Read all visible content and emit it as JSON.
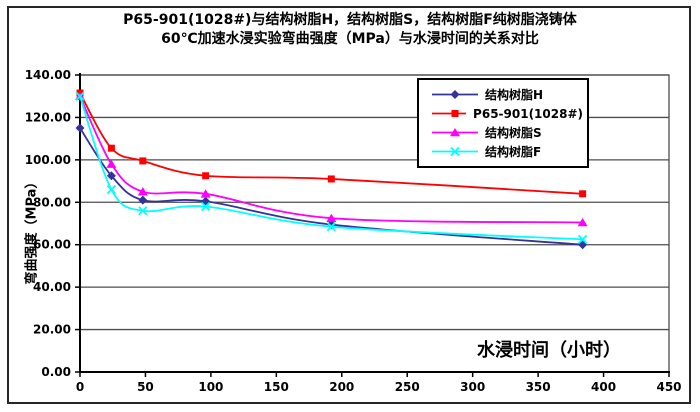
{
  "chart_data": {
    "type": "line",
    "title_line1": "P65-901(1028#)与结构树脂H，结构树脂S，结构树脂F纯树脂浇铸体",
    "title_line2": "60℃加速水浸实验弯曲强度（MPa）与水浸时间的关系对比",
    "xlabel": "水浸时间（小时）",
    "ylabel": "弯曲强度（MPa）",
    "x": [
      0,
      24,
      48,
      96,
      192,
      384
    ],
    "series": [
      {
        "name": "结构树脂H",
        "color": "#333399",
        "marker": "diamond",
        "values": [
          115,
          92.5,
          81,
          80.5,
          69.5,
          60
        ]
      },
      {
        "name": "P65-901(1028#)",
        "color": "#FF0000",
        "marker": "square",
        "values": [
          131.5,
          105.5,
          99.5,
          92.5,
          91,
          84
        ]
      },
      {
        "name": "结构树脂S",
        "color": "#FF00FF",
        "marker": "triangle",
        "values": [
          130,
          98,
          85,
          84,
          72.5,
          70.5
        ]
      },
      {
        "name": "结构树脂F",
        "color": "#00FFFF",
        "marker": "x",
        "values": [
          130,
          86,
          76,
          78,
          68.5,
          62.5
        ]
      }
    ],
    "xlim": [
      0,
      450
    ],
    "ylim": [
      0,
      140
    ],
    "xticks": [
      0,
      50,
      100,
      150,
      200,
      250,
      300,
      350,
      400,
      450
    ],
    "yticks": [
      0,
      20,
      40,
      60,
      80,
      100,
      120,
      140
    ],
    "ytick_labels": [
      "0.00",
      "20.00",
      "40.00",
      "60.00",
      "80.00",
      "100.00",
      "120.00",
      "140.00"
    ],
    "grid": "horizontal",
    "legend_position": "inside-top-right",
    "colors": {
      "axis": "#000000",
      "grid": "#4d4d4d",
      "plot_background": "#ffffff"
    }
  }
}
